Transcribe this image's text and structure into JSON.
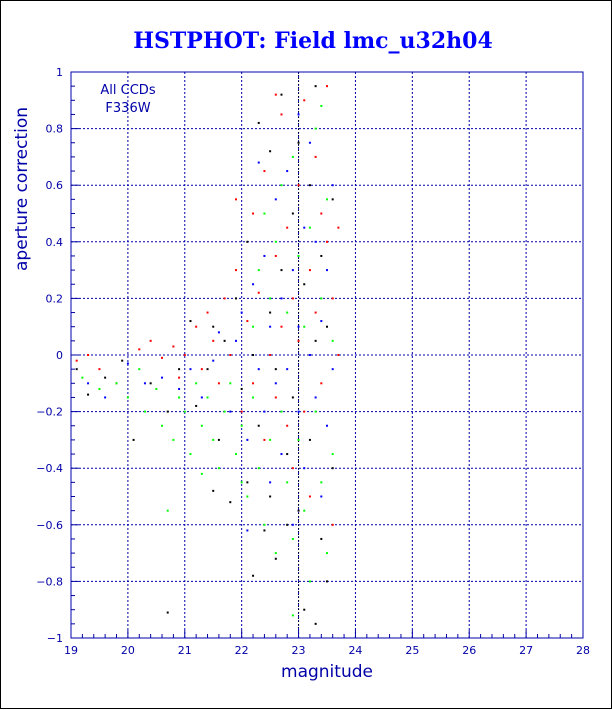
{
  "chart_data": {
    "type": "scatter",
    "title": "HSTPHOT: Field lmc_u32h04",
    "xlabel": "magnitude",
    "ylabel": "aperture correction",
    "xlim": [
      19,
      28
    ],
    "ylim": [
      -1,
      1
    ],
    "x_ticks": [
      "19",
      "20",
      "21",
      "22",
      "23",
      "24",
      "25",
      "26",
      "27",
      "28"
    ],
    "y_ticks": [
      "−1",
      "−0.8",
      "−0.6",
      "−0.4",
      "−0.2",
      "0",
      "0.2",
      "0.4",
      "0.6",
      "0.8",
      "1"
    ],
    "grid": true,
    "annotations": [
      "All CCDs",
      "F336W"
    ],
    "reference_line": {
      "x": 23.0,
      "style": "dotted"
    },
    "colors": {
      "frame": "#0000a8",
      "title": "#0000ff",
      "series": [
        "#000000",
        "#ff0000",
        "#00ff00",
        "#0000ff"
      ]
    },
    "series": [
      {
        "color": "#000000",
        "points": [
          [
            19.1,
            -0.05
          ],
          [
            19.3,
            -0.14
          ],
          [
            19.6,
            -0.08
          ],
          [
            19.9,
            -0.02
          ],
          [
            20.1,
            -0.3
          ],
          [
            20.4,
            -0.1
          ],
          [
            20.7,
            -0.2
          ],
          [
            20.7,
            -0.91
          ],
          [
            20.9,
            -0.05
          ],
          [
            21.1,
            0.12
          ],
          [
            21.2,
            -0.18
          ],
          [
            21.4,
            -0.05
          ],
          [
            21.5,
            0.1
          ],
          [
            21.6,
            -0.3
          ],
          [
            21.7,
            0.05
          ],
          [
            21.8,
            -0.52
          ],
          [
            21.9,
            0.2
          ],
          [
            22.0,
            -0.12
          ],
          [
            22.1,
            0.4
          ],
          [
            22.1,
            -0.45
          ],
          [
            22.2,
            0.0
          ],
          [
            22.3,
            0.82
          ],
          [
            22.3,
            -0.25
          ],
          [
            22.4,
            -0.62
          ],
          [
            22.5,
            0.15
          ],
          [
            22.5,
            0.72
          ],
          [
            22.6,
            -0.05
          ],
          [
            22.6,
            -0.72
          ],
          [
            22.7,
            0.3
          ],
          [
            22.7,
            0.92
          ],
          [
            22.8,
            -0.35
          ],
          [
            22.8,
            -0.6
          ],
          [
            22.9,
            0.5
          ],
          [
            22.9,
            -0.15
          ],
          [
            23.0,
            0.75
          ],
          [
            23.0,
            -0.55
          ],
          [
            23.1,
            0.25
          ],
          [
            23.1,
            -0.9
          ],
          [
            23.2,
            0.6
          ],
          [
            23.2,
            -0.3
          ],
          [
            23.3,
            0.95
          ],
          [
            23.3,
            0.05
          ],
          [
            23.4,
            -0.65
          ],
          [
            23.4,
            0.35
          ],
          [
            23.5,
            -0.8
          ],
          [
            23.5,
            0.1
          ],
          [
            23.6,
            0.55
          ],
          [
            23.6,
            -0.4
          ],
          [
            22.2,
            -0.78
          ],
          [
            22.5,
            -0.5
          ],
          [
            21.5,
            -0.48
          ],
          [
            23.3,
            -0.95
          ]
        ]
      },
      {
        "color": "#ff0000",
        "points": [
          [
            19.1,
            -0.02
          ],
          [
            19.3,
            0.0
          ],
          [
            19.5,
            -0.05
          ],
          [
            19.8,
            -0.1
          ],
          [
            20.2,
            0.02
          ],
          [
            20.4,
            0.05
          ],
          [
            20.6,
            -0.01
          ],
          [
            20.8,
            0.03
          ],
          [
            20.9,
            -0.08
          ],
          [
            21.0,
            0.0
          ],
          [
            21.2,
            0.1
          ],
          [
            21.3,
            -0.05
          ],
          [
            21.4,
            0.15
          ],
          [
            21.5,
            0.05
          ],
          [
            21.6,
            -0.1
          ],
          [
            21.7,
            0.2
          ],
          [
            21.8,
            0.0
          ],
          [
            21.9,
            0.3
          ],
          [
            22.0,
            -0.2
          ],
          [
            22.1,
            0.12
          ],
          [
            22.2,
            0.5
          ],
          [
            22.2,
            -0.1
          ],
          [
            22.3,
            0.22
          ],
          [
            22.4,
            -0.3
          ],
          [
            22.4,
            0.65
          ],
          [
            22.5,
            0.0
          ],
          [
            22.6,
            0.35
          ],
          [
            22.6,
            -0.15
          ],
          [
            22.7,
            0.1
          ],
          [
            22.7,
            0.85
          ],
          [
            22.8,
            -0.25
          ],
          [
            22.8,
            0.45
          ],
          [
            22.9,
            0.2
          ],
          [
            22.9,
            -0.4
          ],
          [
            23.0,
            0.6
          ],
          [
            23.0,
            0.05
          ],
          [
            23.1,
            -0.2
          ],
          [
            23.1,
            0.9
          ],
          [
            23.2,
            0.3
          ],
          [
            23.2,
            -0.5
          ],
          [
            23.3,
            0.15
          ],
          [
            23.3,
            0.7
          ],
          [
            23.4,
            -0.1
          ],
          [
            23.4,
            0.5
          ],
          [
            23.5,
            0.4
          ],
          [
            23.5,
            0.95
          ],
          [
            23.6,
            0.2
          ],
          [
            23.6,
            -0.6
          ],
          [
            23.7,
            0.45
          ],
          [
            23.7,
            0.0
          ],
          [
            22.6,
            0.92
          ],
          [
            21.9,
            0.55
          ]
        ]
      },
      {
        "color": "#00ff00",
        "points": [
          [
            19.2,
            -0.08
          ],
          [
            19.5,
            -0.12
          ],
          [
            19.8,
            -0.1
          ],
          [
            20.0,
            -0.15
          ],
          [
            20.2,
            -0.05
          ],
          [
            20.3,
            -0.2
          ],
          [
            20.5,
            -0.12
          ],
          [
            20.6,
            -0.25
          ],
          [
            20.7,
            -0.55
          ],
          [
            20.8,
            -0.3
          ],
          [
            20.9,
            -0.15
          ],
          [
            21.0,
            -0.2
          ],
          [
            21.1,
            -0.35
          ],
          [
            21.2,
            -0.1
          ],
          [
            21.3,
            -0.25
          ],
          [
            21.4,
            -0.15
          ],
          [
            21.5,
            -0.3
          ],
          [
            21.6,
            -0.4
          ],
          [
            21.7,
            -0.2
          ],
          [
            21.8,
            -0.1
          ],
          [
            21.9,
            -0.35
          ],
          [
            22.0,
            -0.25
          ],
          [
            22.1,
            -0.5
          ],
          [
            22.2,
            -0.15
          ],
          [
            22.2,
            0.1
          ],
          [
            22.3,
            -0.4
          ],
          [
            22.3,
            0.3
          ],
          [
            22.4,
            -0.6
          ],
          [
            22.4,
            0.5
          ],
          [
            22.5,
            -0.3
          ],
          [
            22.5,
            0.2
          ],
          [
            22.6,
            -0.7
          ],
          [
            22.6,
            0.4
          ],
          [
            22.7,
            -0.2
          ],
          [
            22.7,
            0.6
          ],
          [
            22.8,
            -0.45
          ],
          [
            22.8,
            0.15
          ],
          [
            22.9,
            -0.65
          ],
          [
            22.9,
            0.7
          ],
          [
            23.0,
            -0.3
          ],
          [
            23.0,
            0.35
          ],
          [
            23.1,
            -0.55
          ],
          [
            23.1,
            0.1
          ],
          [
            23.2,
            -0.8
          ],
          [
            23.2,
            0.45
          ],
          [
            23.3,
            -0.2
          ],
          [
            23.3,
            0.8
          ],
          [
            23.4,
            -0.45
          ],
          [
            23.4,
            0.2
          ],
          [
            23.5,
            -0.7
          ],
          [
            23.5,
            0.55
          ],
          [
            23.6,
            -0.35
          ],
          [
            23.6,
            0.05
          ],
          [
            23.4,
            0.88
          ],
          [
            22.0,
            -0.45
          ],
          [
            21.3,
            -0.42
          ],
          [
            22.9,
            -0.92
          ]
        ]
      },
      {
        "color": "#0000ff",
        "points": [
          [
            19.3,
            -0.1
          ],
          [
            19.6,
            -0.15
          ],
          [
            20.0,
            -0.03
          ],
          [
            20.3,
            -0.1
          ],
          [
            20.6,
            -0.08
          ],
          [
            20.9,
            -0.12
          ],
          [
            21.1,
            -0.05
          ],
          [
            21.3,
            -0.15
          ],
          [
            21.5,
            -0.02
          ],
          [
            21.6,
            0.08
          ],
          [
            21.8,
            -0.2
          ],
          [
            21.9,
            0.05
          ],
          [
            22.0,
            0.15
          ],
          [
            22.1,
            -0.3
          ],
          [
            22.2,
            0.25
          ],
          [
            22.3,
            -0.05
          ],
          [
            22.4,
            0.35
          ],
          [
            22.4,
            -0.2
          ],
          [
            22.5,
            0.1
          ],
          [
            22.5,
            -0.45
          ],
          [
            22.6,
            0.55
          ],
          [
            22.6,
            -0.1
          ],
          [
            22.7,
            0.2
          ],
          [
            22.7,
            -0.35
          ],
          [
            22.8,
            0.65
          ],
          [
            22.8,
            -0.05
          ],
          [
            22.9,
            0.3
          ],
          [
            22.9,
            -0.6
          ],
          [
            23.0,
            0.1
          ],
          [
            23.0,
            -0.2
          ],
          [
            23.1,
            0.45
          ],
          [
            23.1,
            -0.4
          ],
          [
            23.2,
            0.0
          ],
          [
            23.2,
            0.75
          ],
          [
            23.3,
            -0.15
          ],
          [
            23.3,
            0.4
          ],
          [
            23.4,
            0.12
          ],
          [
            23.4,
            -0.5
          ],
          [
            23.5,
            0.3
          ],
          [
            23.5,
            -0.25
          ],
          [
            23.6,
            0.6
          ],
          [
            23.6,
            -0.05
          ],
          [
            22.3,
            0.68
          ],
          [
            23.0,
            0.85
          ],
          [
            22.1,
            -0.62
          ]
        ]
      }
    ]
  }
}
